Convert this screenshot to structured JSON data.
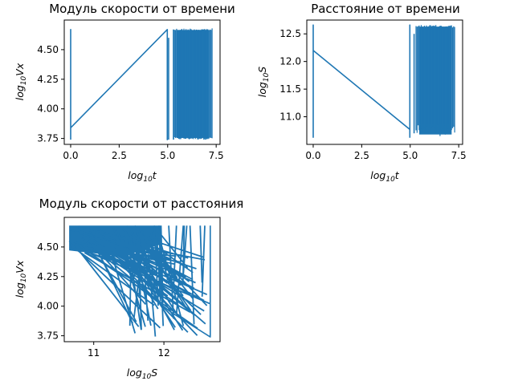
{
  "figure": {
    "background": "#ffffff",
    "series_color": "#1f77b4"
  },
  "chart_data": [
    {
      "type": "line",
      "title": "Модуль скорости от времени",
      "xlabel": {
        "base": "log",
        "sub": "10",
        "var": "t"
      },
      "ylabel": {
        "base": "log",
        "sub": "10",
        "var": "Vx"
      },
      "xlim": [
        -0.33,
        7.7
      ],
      "ylim": [
        3.7,
        4.75
      ],
      "xticks": [
        0,
        2.5,
        5,
        7.5
      ],
      "xtick_labels": [
        "0.0",
        "2.5",
        "5.0",
        "7.5"
      ],
      "yticks": [
        3.75,
        4.0,
        4.25,
        4.5
      ],
      "ytick_labels": [
        "3.75",
        "4.00",
        "4.25",
        "4.50"
      ],
      "grid": false,
      "legend": "none",
      "series": [
        {
          "x": [
            0,
            0,
            0,
            4.98,
            4.98,
            4.98
          ],
          "y": [
            3.74,
            4.67,
            3.84,
            4.67,
            3.74,
            4.67
          ]
        }
      ],
      "oscillation_band": {
        "x": [
          5.3,
          7.3
        ],
        "y": [
          3.74,
          4.68
        ]
      },
      "extra_spikes": [
        {
          "x": 5.05,
          "y": [
            3.74,
            4.6
          ]
        },
        {
          "x": 5.3,
          "y": [
            3.74,
            4.67
          ]
        }
      ]
    },
    {
      "type": "line",
      "title": "Расстояние от времени",
      "xlabel": {
        "base": "log",
        "sub": "10",
        "var": "t"
      },
      "ylabel": {
        "base": "log",
        "sub": "10",
        "var": "S"
      },
      "xlim": [
        -0.33,
        7.7
      ],
      "ylim": [
        10.5,
        12.75
      ],
      "xticks": [
        0,
        2.5,
        5,
        7.5
      ],
      "xtick_labels": [
        "0.0",
        "2.5",
        "5.0",
        "7.5"
      ],
      "yticks": [
        11.0,
        11.5,
        12.0,
        12.5
      ],
      "ytick_labels": [
        "11.0",
        "11.5",
        "12.0",
        "12.5"
      ],
      "grid": false,
      "legend": "none",
      "series": [
        {
          "x": [
            0,
            0,
            0,
            4.98,
            4.98,
            4.98
          ],
          "y": [
            10.62,
            12.66,
            12.2,
            10.77,
            12.66,
            10.62
          ]
        }
      ],
      "oscillation_band": {
        "x": [
          5.3,
          7.3
        ],
        "y": [
          10.65,
          12.66
        ]
      },
      "extra_spikes": [
        {
          "x": 5.2,
          "y": [
            10.7,
            12.5
          ]
        }
      ]
    },
    {
      "type": "line",
      "title": "Модуль скорости от расстояния",
      "xlabel": {
        "base": "log",
        "sub": "10",
        "var": "S"
      },
      "ylabel": {
        "base": "log",
        "sub": "10",
        "var": "Vx"
      },
      "xlim": [
        10.58,
        12.8
      ],
      "ylim": [
        3.7,
        4.75
      ],
      "xticks": [
        11,
        12
      ],
      "xtick_labels": [
        "11",
        "12"
      ],
      "yticks": [
        3.75,
        4.0,
        4.25,
        4.5
      ],
      "ytick_labels": [
        "3.75",
        "4.00",
        "4.25",
        "4.50"
      ],
      "grid": false,
      "legend": "none",
      "series": [
        {
          "x": [
            10.65,
            11.55,
            12.1,
            12.66,
            12.66
          ],
          "y": [
            4.55,
            4.2,
            3.95,
            3.74,
            4.68
          ]
        }
      ],
      "dense_region": {
        "x": [
          10.65,
          11.95
        ],
        "y": [
          4.45,
          4.68
        ]
      }
    }
  ]
}
